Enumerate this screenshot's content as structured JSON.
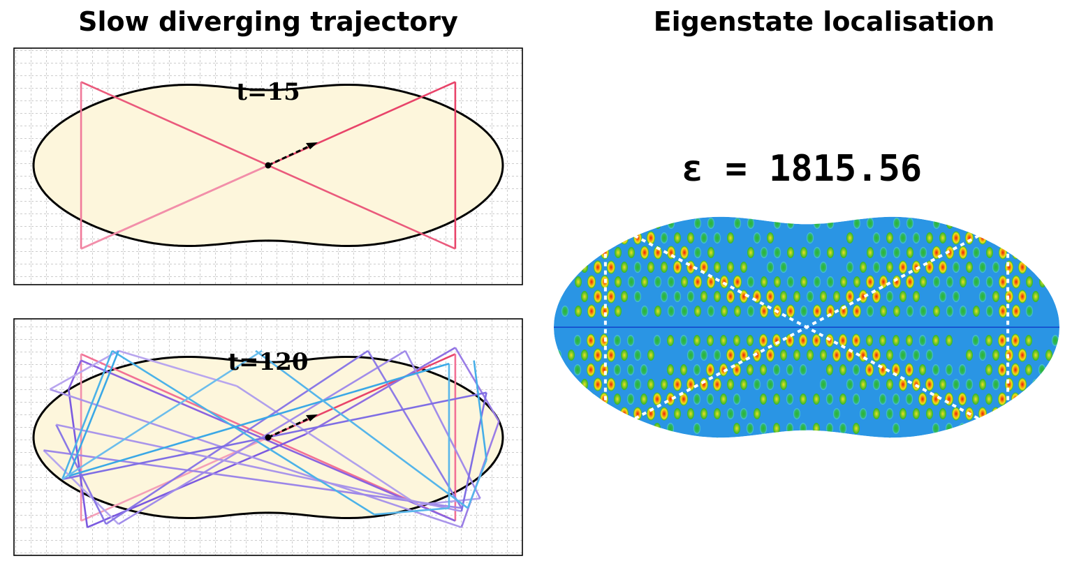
{
  "left_title": "Slow diverging trajectory",
  "right_title": "Eigenstate localisation",
  "panel_top": {
    "time_label": "t=15",
    "segments": [
      {
        "from": [
          -3.0,
          -1.3
        ],
        "to": [
          3.0,
          1.3
        ],
        "color": "#e8446a"
      },
      {
        "from": [
          3.0,
          1.3
        ],
        "to": [
          3.0,
          -1.3
        ],
        "color": "#e8446a"
      },
      {
        "from": [
          3.0,
          -1.3
        ],
        "to": [
          -3.0,
          1.3
        ],
        "color": "#ea5a7c"
      },
      {
        "from": [
          -3.0,
          1.3
        ],
        "to": [
          -3.0,
          -1.3
        ],
        "color": "#f0799a"
      },
      {
        "from": [
          -3.0,
          -1.3
        ],
        "to": [
          0.0,
          0.0
        ],
        "color": "#f28fab"
      }
    ]
  },
  "panel_bottom": {
    "time_label": "t=120",
    "segments": [
      {
        "from": [
          0.0,
          0.0
        ],
        "to": [
          3.0,
          1.3
        ],
        "color": "#e8446a"
      },
      {
        "from": [
          3.0,
          1.3
        ],
        "to": [
          3.0,
          -1.3
        ],
        "color": "#f27195"
      },
      {
        "from": [
          3.0,
          -1.3
        ],
        "to": [
          -3.0,
          1.3
        ],
        "color": "#f27195"
      },
      {
        "from": [
          -3.0,
          1.3
        ],
        "to": [
          -3.0,
          -1.3
        ],
        "color": "#f28fab"
      },
      {
        "from": [
          -3.0,
          -1.3
        ],
        "to": [
          0.0,
          0.0
        ],
        "color": "#f4a0b8"
      },
      {
        "from": [
          3.0,
          -1.3
        ],
        "to": [
          -3.0,
          1.2
        ],
        "color": "#8a63e0"
      },
      {
        "from": [
          -3.0,
          1.2
        ],
        "to": [
          -3.2,
          0.75
        ],
        "color": "#8a63e0"
      },
      {
        "from": [
          -3.2,
          0.75
        ],
        "to": [
          -2.9,
          -1.4
        ],
        "color": "#7b5ae0"
      },
      {
        "from": [
          -2.9,
          -1.4
        ],
        "to": [
          0.6,
          0.05
        ],
        "color": "#7b5ae0"
      },
      {
        "from": [
          0.6,
          0.05
        ],
        "to": [
          3.0,
          1.4
        ],
        "color": "#8e6fe2"
      },
      {
        "from": [
          3.0,
          1.4
        ],
        "to": [
          3.7,
          0.25
        ],
        "color": "#9a7de6"
      },
      {
        "from": [
          3.7,
          0.25
        ],
        "to": [
          3.1,
          -1.4
        ],
        "color": "#9a7de6"
      },
      {
        "from": [
          3.1,
          -1.4
        ],
        "to": [
          -3.5,
          0.75
        ],
        "color": "#a995ea"
      },
      {
        "from": [
          -3.5,
          0.75
        ],
        "to": [
          -2.4,
          1.35
        ],
        "color": "#b8a5ee"
      },
      {
        "from": [
          -2.4,
          1.35
        ],
        "to": [
          -0.5,
          0.8
        ],
        "color": "#b8a5ee"
      },
      {
        "from": [
          -0.5,
          0.8
        ],
        "to": [
          2.4,
          -1.05
        ],
        "color": "#b0a0ec"
      },
      {
        "from": [
          2.4,
          -1.05
        ],
        "to": [
          3.4,
          -0.95
        ],
        "color": "#b0a0ec"
      },
      {
        "from": [
          3.4,
          -0.95
        ],
        "to": [
          2.2,
          1.35
        ],
        "color": "#a18cea"
      },
      {
        "from": [
          2.2,
          1.35
        ],
        "to": [
          -2.4,
          -1.35
        ],
        "color": "#a18cea"
      },
      {
        "from": [
          -2.4,
          -1.35
        ],
        "to": [
          -3.6,
          -0.2
        ],
        "color": "#b5a6ee"
      },
      {
        "from": [
          -3.6,
          -0.2
        ],
        "to": [
          3.1,
          -1.1
        ],
        "color": "#9c86e8"
      },
      {
        "from": [
          3.1,
          -1.1
        ],
        "to": [
          1.6,
          1.35
        ],
        "color": "#8e7be6"
      },
      {
        "from": [
          1.6,
          1.35
        ],
        "to": [
          -2.6,
          -1.35
        ],
        "color": "#8a78e6"
      },
      {
        "from": [
          -2.6,
          -1.35
        ],
        "to": [
          -3.4,
          0.2
        ],
        "color": "#8a78e6"
      },
      {
        "from": [
          -3.4,
          0.2
        ],
        "to": [
          3.1,
          -1.15
        ],
        "color": "#a995ea"
      },
      {
        "from": [
          3.1,
          -1.15
        ],
        "to": [
          3.5,
          0.7
        ],
        "color": "#7f6ee4"
      },
      {
        "from": [
          3.5,
          0.7
        ],
        "to": [
          -3.3,
          -0.65
        ],
        "color": "#7f6ee4"
      },
      {
        "from": [
          -3.3,
          -0.65
        ],
        "to": [
          -2.5,
          1.35
        ],
        "color": "#4bb2e8"
      },
      {
        "from": [
          -2.5,
          1.35
        ],
        "to": [
          1.7,
          -1.2
        ],
        "color": "#4bb2e8"
      },
      {
        "from": [
          1.7,
          -1.2
        ],
        "to": [
          2.9,
          -1.1
        ],
        "color": "#5ab7ea"
      },
      {
        "from": [
          2.9,
          -1.1
        ],
        "to": [
          2.9,
          1.15
        ],
        "color": "#5ab7ea"
      },
      {
        "from": [
          2.9,
          1.15
        ],
        "to": [
          -3.2,
          -0.6
        ],
        "color": "#3aa8e6"
      },
      {
        "from": [
          -3.2,
          -0.6
        ],
        "to": [
          -2.4,
          1.35
        ],
        "color": "#3aa8e6"
      },
      {
        "from": [
          -0.2,
          1.35
        ],
        "to": [
          3.2,
          -1.1
        ],
        "color": "#55b5ea"
      },
      {
        "from": [
          3.2,
          -1.1
        ],
        "to": [
          3.5,
          -0.35
        ],
        "color": "#55b5ea"
      },
      {
        "from": [
          3.5,
          -0.35
        ],
        "to": [
          3.3,
          1.2
        ],
        "color": "#46aee8"
      },
      {
        "from": [
          -3.3,
          -0.65
        ],
        "to": [
          -0.1,
          1.35
        ],
        "color": "#6bbdec"
      }
    ]
  },
  "eigen_label": "ε = 1815.56",
  "colors": {
    "billiard_fill": "#fdf6dc",
    "grid": "#9a9a9a",
    "outline": "#000000",
    "periodic_orbit": "#ffffff",
    "field_low": "#1f8be0",
    "field_mid": "#4fc3e8",
    "field_green": "#2db52a",
    "field_yellow": "#f0e21c",
    "field_red": "#e8160f"
  }
}
